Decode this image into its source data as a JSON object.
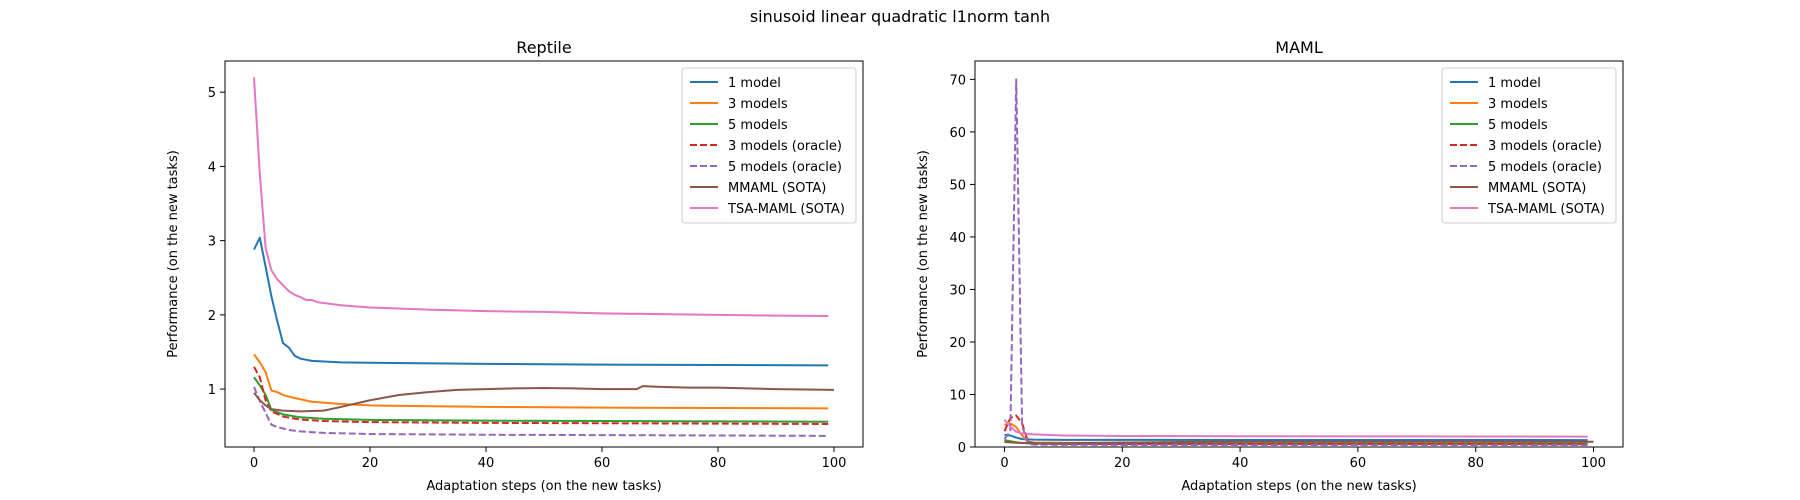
{
  "figure": {
    "suptitle": "sinusoid linear quadratic l1norm tanh"
  },
  "chart_data": [
    {
      "type": "line",
      "title": "Reptile",
      "xlabel": "Adaptation steps (on the new tasks)",
      "ylabel": "Performance (on the new tasks)",
      "xlim": [
        -5,
        105
      ],
      "ylim": [
        0.22,
        5.42
      ],
      "xticks": [
        0,
        20,
        40,
        60,
        80,
        100
      ],
      "yticks": [
        1,
        2,
        3,
        4,
        5
      ],
      "legend": "top-right",
      "series": [
        {
          "name": "1 model",
          "color": "#1f77b4",
          "dash": "solid",
          "points": [
            [
              0,
              2.88
            ],
            [
              1,
              3.04
            ],
            [
              2,
              2.65
            ],
            [
              3,
              2.25
            ],
            [
              4,
              1.92
            ],
            [
              5,
              1.62
            ],
            [
              6,
              1.56
            ],
            [
              7,
              1.45
            ],
            [
              8,
              1.41
            ],
            [
              10,
              1.38
            ],
            [
              15,
              1.36
            ],
            [
              20,
              1.355
            ],
            [
              40,
              1.34
            ],
            [
              60,
              1.33
            ],
            [
              80,
              1.325
            ],
            [
              99,
              1.32
            ]
          ]
        },
        {
          "name": "3 models",
          "color": "#ff7f0e",
          "dash": "solid",
          "points": [
            [
              0,
              1.47
            ],
            [
              1,
              1.36
            ],
            [
              2,
              1.23
            ],
            [
              3,
              0.98
            ],
            [
              4,
              0.96
            ],
            [
              5,
              0.92
            ],
            [
              7,
              0.88
            ],
            [
              10,
              0.83
            ],
            [
              15,
              0.8
            ],
            [
              20,
              0.78
            ],
            [
              40,
              0.76
            ],
            [
              60,
              0.75
            ],
            [
              80,
              0.745
            ],
            [
              99,
              0.74
            ]
          ]
        },
        {
          "name": "5 models",
          "color": "#2ca02c",
          "dash": "solid",
          "points": [
            [
              0,
              1.16
            ],
            [
              1,
              1.05
            ],
            [
              2,
              0.92
            ],
            [
              3,
              0.72
            ],
            [
              5,
              0.66
            ],
            [
              8,
              0.62
            ],
            [
              12,
              0.6
            ],
            [
              20,
              0.585
            ],
            [
              40,
              0.575
            ],
            [
              60,
              0.57
            ],
            [
              80,
              0.565
            ],
            [
              99,
              0.56
            ]
          ]
        },
        {
          "name": "3 models (oracle)",
          "color": "#d62728",
          "dash": "dashed",
          "points": [
            [
              0,
              1.3
            ],
            [
              1,
              1.16
            ],
            [
              2,
              0.85
            ],
            [
              3,
              0.7
            ],
            [
              5,
              0.63
            ],
            [
              8,
              0.59
            ],
            [
              12,
              0.57
            ],
            [
              20,
              0.555
            ],
            [
              40,
              0.545
            ],
            [
              60,
              0.54
            ],
            [
              80,
              0.535
            ],
            [
              99,
              0.53
            ]
          ]
        },
        {
          "name": "5 models (oracle)",
          "color": "#9467bd",
          "dash": "dashed",
          "points": [
            [
              0,
              1.03
            ],
            [
              1,
              0.84
            ],
            [
              2,
              0.68
            ],
            [
              3,
              0.52
            ],
            [
              4,
              0.49
            ],
            [
              6,
              0.45
            ],
            [
              8,
              0.43
            ],
            [
              12,
              0.41
            ],
            [
              20,
              0.395
            ],
            [
              40,
              0.385
            ],
            [
              60,
              0.38
            ],
            [
              80,
              0.375
            ],
            [
              99,
              0.37
            ]
          ]
        },
        {
          "name": "MMAML (SOTA)",
          "color": "#8c564b",
          "dash": "solid",
          "points": [
            [
              0,
              0.95
            ],
            [
              1,
              0.85
            ],
            [
              2,
              0.78
            ],
            [
              3,
              0.73
            ],
            [
              5,
              0.71
            ],
            [
              8,
              0.7
            ],
            [
              12,
              0.71
            ],
            [
              15,
              0.76
            ],
            [
              20,
              0.85
            ],
            [
              25,
              0.92
            ],
            [
              30,
              0.96
            ],
            [
              35,
              0.99
            ],
            [
              40,
              1.0
            ],
            [
              45,
              1.01
            ],
            [
              50,
              1.015
            ],
            [
              55,
              1.01
            ],
            [
              60,
              1.0
            ],
            [
              66,
              1.0
            ],
            [
              67,
              1.04
            ],
            [
              70,
              1.03
            ],
            [
              75,
              1.02
            ],
            [
              80,
              1.02
            ],
            [
              85,
              1.01
            ],
            [
              90,
              1.0
            ],
            [
              95,
              0.995
            ],
            [
              100,
              0.99
            ]
          ]
        },
        {
          "name": "TSA-MAML (SOTA)",
          "color": "#e377c2",
          "dash": "solid",
          "points": [
            [
              0,
              5.2
            ],
            [
              1,
              3.9
            ],
            [
              2,
              2.9
            ],
            [
              3,
              2.6
            ],
            [
              4,
              2.48
            ],
            [
              5,
              2.4
            ],
            [
              6,
              2.32
            ],
            [
              7,
              2.27
            ],
            [
              8,
              2.24
            ],
            [
              9,
              2.2
            ],
            [
              10,
              2.2
            ],
            [
              11,
              2.17
            ],
            [
              13,
              2.15
            ],
            [
              15,
              2.13
            ],
            [
              20,
              2.1
            ],
            [
              30,
              2.07
            ],
            [
              40,
              2.05
            ],
            [
              50,
              2.04
            ],
            [
              60,
              2.02
            ],
            [
              70,
              2.01
            ],
            [
              80,
              2.0
            ],
            [
              90,
              1.99
            ],
            [
              99,
              1.985
            ]
          ]
        }
      ]
    },
    {
      "type": "line",
      "title": "MAML",
      "xlabel": "Adaptation steps (on the new tasks)",
      "ylabel": "Performance (on the new tasks)",
      "xlim": [
        -5,
        105
      ],
      "ylim": [
        0,
        73.5
      ],
      "xticks": [
        0,
        20,
        40,
        60,
        80,
        100
      ],
      "yticks": [
        0,
        10,
        20,
        30,
        40,
        50,
        60,
        70
      ],
      "legend": "top-right",
      "series": [
        {
          "name": "1 model",
          "color": "#1f77b4",
          "dash": "solid",
          "points": [
            [
              0,
              2.3
            ],
            [
              1,
              2.2
            ],
            [
              2,
              1.8
            ],
            [
              3,
              1.5
            ],
            [
              5,
              1.4
            ],
            [
              10,
              1.36
            ],
            [
              20,
              1.35
            ],
            [
              40,
              1.34
            ],
            [
              60,
              1.33
            ],
            [
              80,
              1.33
            ],
            [
              99,
              1.32
            ]
          ]
        },
        {
          "name": "3 models",
          "color": "#ff7f0e",
          "dash": "solid",
          "points": [
            [
              0,
              4.2
            ],
            [
              1,
              4.5
            ],
            [
              2,
              3.8
            ],
            [
              3,
              2.2
            ],
            [
              4,
              1.0
            ],
            [
              5,
              0.85
            ],
            [
              10,
              0.8
            ],
            [
              20,
              0.78
            ],
            [
              40,
              0.76
            ],
            [
              60,
              0.75
            ],
            [
              80,
              0.75
            ],
            [
              99,
              0.74
            ]
          ]
        },
        {
          "name": "5 models",
          "color": "#2ca02c",
          "dash": "solid",
          "points": [
            [
              0,
              1.3
            ],
            [
              1,
              1.1
            ],
            [
              2,
              0.9
            ],
            [
              3,
              0.75
            ],
            [
              5,
              0.65
            ],
            [
              10,
              0.6
            ],
            [
              20,
              0.58
            ],
            [
              40,
              0.57
            ],
            [
              60,
              0.57
            ],
            [
              80,
              0.56
            ],
            [
              99,
              0.56
            ]
          ]
        },
        {
          "name": "3 models (oracle)",
          "color": "#d62728",
          "dash": "dashed",
          "points": [
            [
              0,
              3.0
            ],
            [
              1,
              5.5
            ],
            [
              2,
              6.0
            ],
            [
              3,
              4.5
            ],
            [
              4,
              1.0
            ],
            [
              5,
              0.7
            ],
            [
              10,
              0.6
            ],
            [
              20,
              0.56
            ],
            [
              40,
              0.55
            ],
            [
              60,
              0.54
            ],
            [
              80,
              0.54
            ],
            [
              99,
              0.53
            ]
          ]
        },
        {
          "name": "5 models (oracle)",
          "color": "#9467bd",
          "dash": "dashed",
          "points": [
            [
              0,
              1.5
            ],
            [
              1,
              3.0
            ],
            [
              2,
              70.0
            ],
            [
              3,
              4.0
            ],
            [
              4,
              0.6
            ],
            [
              5,
              0.45
            ],
            [
              10,
              0.4
            ],
            [
              20,
              0.39
            ],
            [
              40,
              0.38
            ],
            [
              60,
              0.38
            ],
            [
              80,
              0.375
            ],
            [
              99,
              0.37
            ]
          ]
        },
        {
          "name": "MMAML (SOTA)",
          "color": "#8c564b",
          "dash": "solid",
          "points": [
            [
              0,
              0.95
            ],
            [
              2,
              0.8
            ],
            [
              5,
              0.72
            ],
            [
              10,
              0.72
            ],
            [
              20,
              0.85
            ],
            [
              30,
              0.96
            ],
            [
              40,
              1.0
            ],
            [
              60,
              1.0
            ],
            [
              80,
              1.02
            ],
            [
              100,
              0.99
            ]
          ]
        },
        {
          "name": "TSA-MAML (SOTA)",
          "color": "#e377c2",
          "dash": "solid",
          "points": [
            [
              0,
              5.2
            ],
            [
              1,
              3.9
            ],
            [
              2,
              2.9
            ],
            [
              3,
              2.6
            ],
            [
              5,
              2.4
            ],
            [
              10,
              2.2
            ],
            [
              20,
              2.1
            ],
            [
              40,
              2.05
            ],
            [
              60,
              2.02
            ],
            [
              80,
              2.0
            ],
            [
              99,
              1.985
            ]
          ]
        }
      ]
    }
  ]
}
